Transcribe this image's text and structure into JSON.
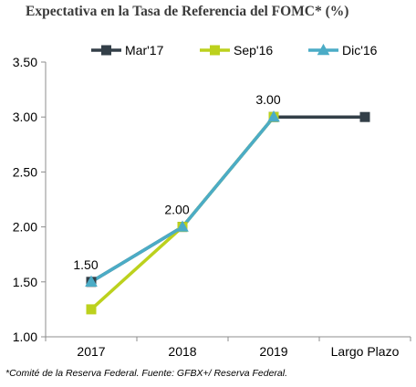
{
  "chart_data": {
    "type": "line",
    "title": "Expectativa en la Tasa de Referencia del FOMC*  (%)",
    "categories": [
      "2017",
      "2018",
      "2019",
      "Largo Plazo"
    ],
    "ylim": [
      1.0,
      3.5
    ],
    "yticks": [
      "1.00",
      "1.50",
      "2.00",
      "2.50",
      "3.00",
      "3.50"
    ],
    "grid": false,
    "legend_position": "top",
    "series": [
      {
        "name": "Mar'17",
        "values": [
          1.5,
          2.0,
          3.0,
          3.0
        ],
        "color": "#333f48",
        "marker": "square"
      },
      {
        "name": "Sep'16",
        "values": [
          1.25,
          2.0,
          3.0,
          null
        ],
        "color": "#bcd11d",
        "marker": "square"
      },
      {
        "name": "Dic'16",
        "values": [
          1.5,
          2.0,
          3.0,
          null
        ],
        "color": "#4bacc6",
        "marker": "triangle"
      }
    ],
    "data_labels": [
      {
        "category": "2017",
        "text": "1.50"
      },
      {
        "category": "2018",
        "text": "2.00"
      },
      {
        "category": "2019",
        "text": "3.00"
      }
    ]
  },
  "footnote": "*Comité de la Reserva Federal. Fuente: GFBX+/  Reserva Federal."
}
